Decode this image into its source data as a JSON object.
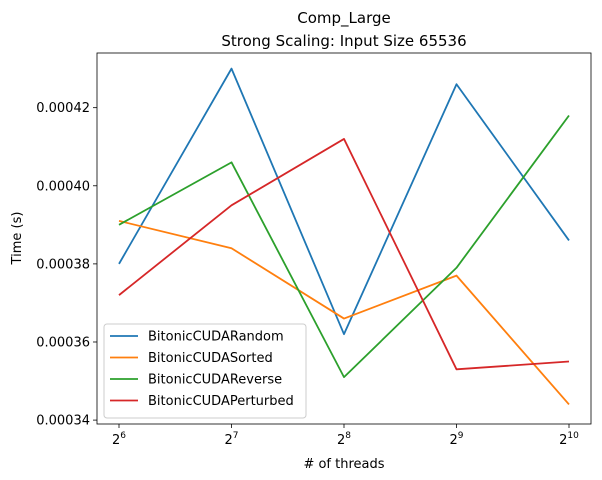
{
  "chart_data": {
    "type": "line",
    "title": "Comp_Large",
    "subtitle": "Strong Scaling: Input Size 65536",
    "xlabel": "# of threads",
    "ylabel": "Time (s)",
    "x_scale": "log2",
    "x": [
      64,
      128,
      256,
      512,
      1024
    ],
    "x_tick_labels": [
      {
        "base": "2",
        "exp": "6"
      },
      {
        "base": "2",
        "exp": "7"
      },
      {
        "base": "2",
        "exp": "8"
      },
      {
        "base": "2",
        "exp": "9"
      },
      {
        "base": "2",
        "exp": "10"
      }
    ],
    "ylim": [
      0.000339,
      0.000434
    ],
    "y_ticks": [
      0.00034,
      0.00036,
      0.00038,
      0.0004,
      0.00042
    ],
    "y_tick_labels": [
      "0.00034",
      "0.00036",
      "0.00038",
      "0.00040",
      "0.00042"
    ],
    "grid": false,
    "legend_position": "lower-left",
    "series": [
      {
        "name": "BitonicCUDARandom",
        "color": "#1f77b4",
        "values": [
          0.00038,
          0.00043,
          0.000362,
          0.000426,
          0.000386
        ]
      },
      {
        "name": "BitonicCUDASorted",
        "color": "#ff7f0e",
        "values": [
          0.000391,
          0.000384,
          0.000366,
          0.000377,
          0.000344
        ]
      },
      {
        "name": "BitonicCUDAReverse",
        "color": "#2ca02c",
        "values": [
          0.00039,
          0.000406,
          0.000351,
          0.000379,
          0.000418
        ]
      },
      {
        "name": "BitonicCUDAPerturbed",
        "color": "#d62728",
        "values": [
          0.000372,
          0.000395,
          0.000412,
          0.000353,
          0.000355
        ]
      }
    ]
  }
}
